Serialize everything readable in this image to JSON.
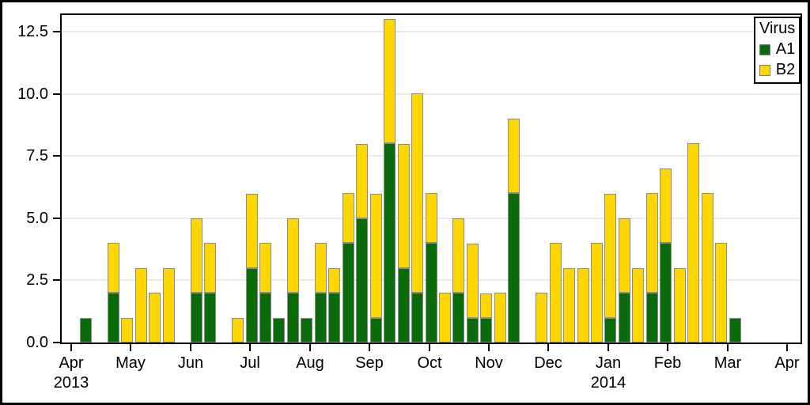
{
  "chart_data": {
    "type": "bar",
    "stacked": true,
    "title": "",
    "xlabel": "",
    "ylabel": "",
    "x_unit": "week",
    "ylim": [
      0,
      13.2
    ],
    "yticks": [
      "0.0",
      "2.5",
      "5.0",
      "7.5",
      "10.0",
      "12.5"
    ],
    "grid": true,
    "months": [
      {
        "label": "Apr",
        "sub": "2013"
      },
      {
        "label": "May"
      },
      {
        "label": "Jun"
      },
      {
        "label": "Jul"
      },
      {
        "label": "Aug"
      },
      {
        "label": "Sep"
      },
      {
        "label": "Oct"
      },
      {
        "label": "Nov"
      },
      {
        "label": "Dec"
      },
      {
        "label": "Jan",
        "sub": "2014"
      },
      {
        "label": "Feb"
      },
      {
        "label": "Mar"
      },
      {
        "label": "Apr"
      }
    ],
    "legend": {
      "title": "Virus",
      "position": "top-right",
      "entries": [
        {
          "name": "A1",
          "color": "#0a6b0a"
        },
        {
          "name": "B2",
          "color": "#ffd700"
        }
      ]
    },
    "bar_border_color": "#8c8c8c",
    "weeks_format": [
      "week_slot_from_2013-04-08",
      "A1",
      "B2"
    ],
    "weeks": [
      [
        0,
        1,
        0
      ],
      [
        2,
        2,
        2
      ],
      [
        3,
        0,
        1
      ],
      [
        4,
        0,
        3
      ],
      [
        5,
        0,
        2
      ],
      [
        6,
        0,
        3
      ],
      [
        8,
        2,
        3
      ],
      [
        9,
        2,
        2
      ],
      [
        11,
        0,
        1
      ],
      [
        12,
        3,
        3
      ],
      [
        13,
        2,
        2
      ],
      [
        14,
        1,
        0
      ],
      [
        15,
        2,
        3
      ],
      [
        16,
        1,
        0
      ],
      [
        17,
        2,
        2
      ],
      [
        18,
        2,
        1
      ],
      [
        19,
        4,
        2
      ],
      [
        20,
        5,
        3
      ],
      [
        21,
        1,
        5
      ],
      [
        22,
        8,
        5
      ],
      [
        23,
        3,
        5
      ],
      [
        24,
        2,
        8
      ],
      [
        25,
        4,
        2
      ],
      [
        26,
        0,
        2
      ],
      [
        27,
        2,
        3
      ],
      [
        28,
        1,
        3
      ],
      [
        29,
        1,
        1
      ],
      [
        30,
        0,
        2
      ],
      [
        31,
        6,
        3
      ],
      [
        33,
        0,
        2
      ],
      [
        34,
        0,
        4
      ],
      [
        35,
        0,
        3
      ],
      [
        36,
        0,
        3
      ],
      [
        37,
        0,
        4
      ],
      [
        38,
        1,
        5
      ],
      [
        39,
        2,
        3
      ],
      [
        40,
        0,
        3
      ],
      [
        41,
        2,
        4
      ],
      [
        42,
        4,
        3
      ],
      [
        43,
        0,
        3
      ],
      [
        44,
        0,
        8
      ],
      [
        45,
        0,
        6
      ],
      [
        46,
        0,
        4
      ],
      [
        47,
        1,
        0
      ]
    ]
  }
}
